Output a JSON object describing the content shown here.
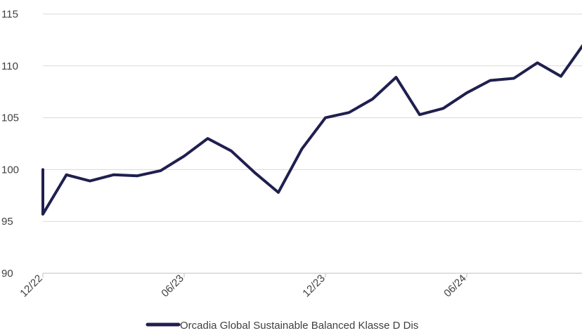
{
  "chart_data": {
    "type": "line",
    "title": "",
    "xlabel": "",
    "ylabel": "",
    "ylim": [
      90,
      115
    ],
    "yticks": [
      90,
      95,
      100,
      105,
      110,
      115
    ],
    "xtick_labels": [
      "12/22",
      "06/23",
      "12/23",
      "06/24"
    ],
    "grid": "horizontal",
    "legend_position": "bottom",
    "line_color": "#1f1f4f",
    "series": [
      {
        "name": "Orcadia Global Sustainable Balanced Klasse D Dis",
        "x": [
          "12/22",
          "12/22",
          "01/23",
          "02/23",
          "03/23",
          "04/23",
          "05/23",
          "06/23",
          "07/23",
          "08/23",
          "09/23",
          "10/23",
          "11/23",
          "12/23",
          "01/24",
          "02/24",
          "03/24",
          "04/24",
          "05/24",
          "06/24",
          "07/24",
          "08/24",
          "09/24",
          "10/24",
          "11/24"
        ],
        "values": [
          100.0,
          95.7,
          99.5,
          98.9,
          99.5,
          99.4,
          99.9,
          101.3,
          103.0,
          101.8,
          99.7,
          97.8,
          102.0,
          105.0,
          105.5,
          106.8,
          108.9,
          105.3,
          105.9,
          107.4,
          108.6,
          108.8,
          110.3,
          109.0,
          112.2
        ]
      }
    ]
  }
}
